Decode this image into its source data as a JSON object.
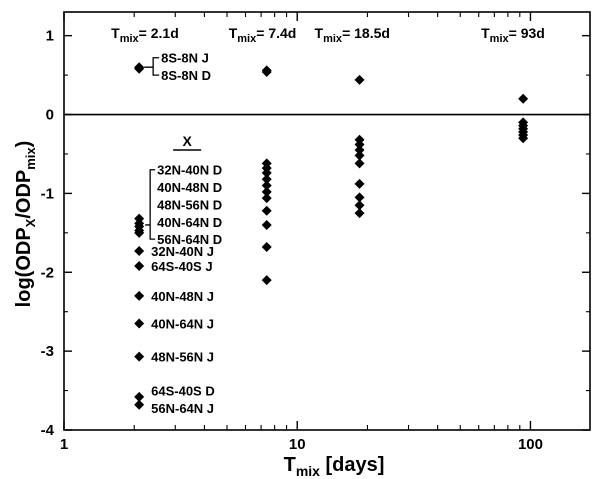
{
  "chart_data": {
    "type": "scatter",
    "title": "",
    "xlabel": {
      "main": "T",
      "sub": "mix",
      "rest": " [days]"
    },
    "ylabel": {
      "p1": "log(ODP",
      "s1": "X",
      "p2": "/ODP",
      "s2": "mix",
      "p3": ")"
    },
    "x_scale": "log",
    "xlim": [
      1,
      180
    ],
    "ylim": [
      -4,
      1.3
    ],
    "x_ticks": [
      {
        "value": 1,
        "label": "1"
      },
      {
        "value": 10,
        "label": "10"
      },
      {
        "value": 100,
        "label": "100"
      }
    ],
    "y_ticks": [
      {
        "value": 1,
        "label": "1"
      },
      {
        "value": 0,
        "label": "0"
      },
      {
        "value": -1,
        "label": "-1"
      },
      {
        "value": -2,
        "label": "-2"
      },
      {
        "value": -3,
        "label": "-3"
      },
      {
        "value": -4,
        "label": "-4"
      }
    ],
    "reference_line_y": 0,
    "grid": false,
    "tmix_annotations": [
      {
        "main": "T",
        "sub": "mix",
        "value": "= 2.1d",
        "x": 2.1
      },
      {
        "main": "T",
        "sub": "mix",
        "value": "= 7.4d",
        "x": 7.4
      },
      {
        "main": "T",
        "sub": "mix",
        "value": "= 18.5d",
        "x": 18.5
      },
      {
        "main": "T",
        "sub": "mix",
        "value": "= 93d",
        "x": 93
      }
    ],
    "group_header": "X",
    "points": [
      {
        "label": "8S-8N J",
        "x": 2.1,
        "y": 0.6
      },
      {
        "label": "8S-8N D",
        "x": 2.1,
        "y": 0.58
      },
      {
        "label": "32N-40N D",
        "x": 2.1,
        "y": -1.32
      },
      {
        "label": "40N-48N D",
        "x": 2.1,
        "y": -1.38
      },
      {
        "label": "48N-56N D",
        "x": 2.1,
        "y": -1.42
      },
      {
        "label": "40N-64N D",
        "x": 2.1,
        "y": -1.47
      },
      {
        "label": "56N-64N D",
        "x": 2.1,
        "y": -1.5
      },
      {
        "label": "32N-40N J",
        "x": 2.1,
        "y": -1.73
      },
      {
        "label": "64S-40S J",
        "x": 2.1,
        "y": -1.92
      },
      {
        "label": "40N-48N J",
        "x": 2.1,
        "y": -2.3
      },
      {
        "label": "40N-64N J",
        "x": 2.1,
        "y": -2.65
      },
      {
        "label": "48N-56N J",
        "x": 2.1,
        "y": -3.07
      },
      {
        "label": "64S-40S D",
        "x": 2.1,
        "y": -3.58
      },
      {
        "label": "56N-64N J",
        "x": 2.1,
        "y": -3.68
      },
      {
        "x": 7.4,
        "y": 0.56
      },
      {
        "x": 7.4,
        "y": 0.54
      },
      {
        "x": 7.4,
        "y": -0.62
      },
      {
        "x": 7.4,
        "y": -0.68
      },
      {
        "x": 7.4,
        "y": -0.74
      },
      {
        "x": 7.4,
        "y": -0.82
      },
      {
        "x": 7.4,
        "y": -0.9
      },
      {
        "x": 7.4,
        "y": -0.98
      },
      {
        "x": 7.4,
        "y": -1.06
      },
      {
        "x": 7.4,
        "y": -1.22
      },
      {
        "x": 7.4,
        "y": -1.4
      },
      {
        "x": 7.4,
        "y": -1.68
      },
      {
        "x": 7.4,
        "y": -2.1
      },
      {
        "x": 18.5,
        "y": 0.44
      },
      {
        "x": 18.5,
        "y": -0.32
      },
      {
        "x": 18.5,
        "y": -0.38
      },
      {
        "x": 18.5,
        "y": -0.45
      },
      {
        "x": 18.5,
        "y": -0.52
      },
      {
        "x": 18.5,
        "y": -0.62
      },
      {
        "x": 18.5,
        "y": -0.88
      },
      {
        "x": 18.5,
        "y": -1.05
      },
      {
        "x": 18.5,
        "y": -1.15
      },
      {
        "x": 18.5,
        "y": -1.25
      },
      {
        "x": 93,
        "y": 0.2
      },
      {
        "x": 93,
        "y": -0.1
      },
      {
        "x": 93,
        "y": -0.14
      },
      {
        "x": 93,
        "y": -0.18
      },
      {
        "x": 93,
        "y": -0.22
      },
      {
        "x": 93,
        "y": -0.26
      },
      {
        "x": 93,
        "y": -0.3
      }
    ],
    "label_layout": [
      {
        "label": "8S-8N J",
        "y": 0.72
      },
      {
        "label": "8S-8N D",
        "y": 0.5
      },
      {
        "label": "32N-40N D",
        "y": -0.7
      },
      {
        "label": "40N-48N D",
        "y": -0.92
      },
      {
        "label": "48N-56N D",
        "y": -1.14
      },
      {
        "label": "40N-64N D",
        "y": -1.36
      },
      {
        "label": "56N-64N D",
        "y": -1.58
      },
      {
        "label": "32N-40N J",
        "y": -1.73
      },
      {
        "label": "64S-40S J",
        "y": -1.92
      },
      {
        "label": "40N-48N J",
        "y": -2.3
      },
      {
        "label": "40N-64N J",
        "y": -2.65
      },
      {
        "label": "48N-56N J",
        "y": -3.07
      },
      {
        "label": "64S-40S D",
        "y": -3.5
      },
      {
        "label": "56N-64N J",
        "y": -3.72
      }
    ]
  }
}
